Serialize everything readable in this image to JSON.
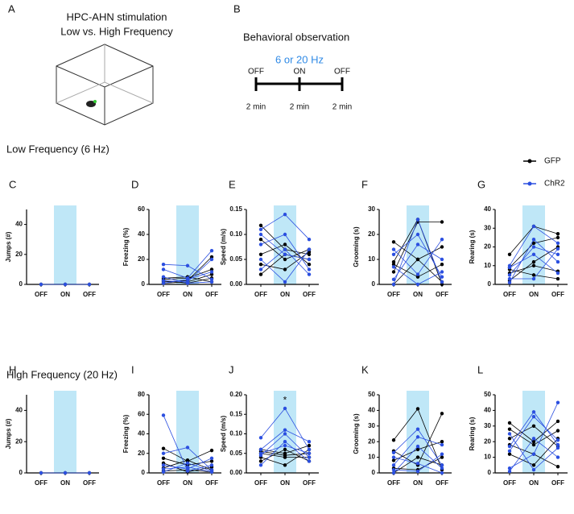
{
  "panel_a": {
    "label": "A",
    "title": [
      "HPC-AHN stimulation",
      "Low vs. High Frequency"
    ]
  },
  "panel_b": {
    "label": "B",
    "title": "Behavioral observation",
    "stim": "6 or 20 Hz",
    "stim_color": "#2f8ae6",
    "states": [
      "OFF",
      "ON",
      "OFF"
    ],
    "durations": [
      "2 min",
      "2 min",
      "2 min"
    ]
  },
  "sections": [
    "Low Frequency (6 Hz)",
    "High Frequency (20 Hz)"
  ],
  "legend": [
    {
      "name": "GFP",
      "color": "#000000"
    },
    {
      "name": "ChR2",
      "color": "#2b4fe0"
    }
  ],
  "shade_color": "#bfe7f7",
  "chart_data": [
    {
      "type": "line",
      "panel": "C",
      "ylabel": "Jumps (#)",
      "categories": [
        "OFF",
        "ON",
        "OFF"
      ],
      "ylim": [
        0,
        50
      ],
      "yticks": [
        0,
        20,
        40
      ],
      "groups": [
        {
          "color": "#000000",
          "subjects": [
            [
              0,
              0,
              0
            ]
          ]
        },
        {
          "color": "#2b4fe0",
          "subjects": [
            [
              0,
              0,
              0
            ]
          ]
        }
      ]
    },
    {
      "type": "line",
      "panel": "D",
      "ylabel": "Freezing (%)",
      "categories": [
        "OFF",
        "ON",
        "OFF"
      ],
      "ylim": [
        0,
        60
      ],
      "yticks": [
        0,
        20,
        40,
        60
      ],
      "groups": [
        {
          "color": "#000000",
          "subjects": [
            [
              4,
              5,
              12
            ],
            [
              2,
              3,
              22
            ],
            [
              5,
              6,
              2
            ],
            [
              1,
              2,
              8
            ],
            [
              3,
              1,
              5
            ]
          ]
        },
        {
          "color": "#2b4fe0",
          "subjects": [
            [
              16,
              15,
              4
            ],
            [
              12,
              5,
              27
            ],
            [
              3,
              2,
              20
            ],
            [
              1,
              4,
              10
            ],
            [
              6,
              1,
              2
            ]
          ]
        }
      ]
    },
    {
      "type": "line",
      "panel": "E",
      "ylabel": "Speed (m/s)",
      "categories": [
        "OFF",
        "ON",
        "OFF"
      ],
      "ylim": [
        0,
        0.15
      ],
      "yticks": [
        {
          "value": 0,
          "label": "0.00"
        },
        {
          "value": 0.05,
          "label": "0.05"
        },
        {
          "value": 0.1,
          "label": "0.10"
        },
        {
          "value": 0.15,
          "label": "0.15"
        }
      ],
      "groups": [
        {
          "color": "#000000",
          "subjects": [
            [
              0.118,
              0.07,
              0.06
            ],
            [
              0.09,
              0.05,
              0.07
            ],
            [
              0.06,
              0.08,
              0.04
            ],
            [
              0.04,
              0.03,
              0.065
            ],
            [
              0.02,
              0.06,
              0.05
            ]
          ]
        },
        {
          "color": "#2b4fe0",
          "subjects": [
            [
              0.11,
              0.14,
              0.09
            ],
            [
              0.08,
              0.1,
              0.03
            ],
            [
              0.05,
              0.005,
              0.07
            ],
            [
              0.03,
              0.07,
              0.02
            ],
            [
              0.1,
              0.06,
              0.05
            ]
          ]
        }
      ]
    },
    {
      "type": "line",
      "panel": "F",
      "ylabel": "Grooming (s)",
      "categories": [
        "OFF",
        "ON",
        "OFF"
      ],
      "ylim": [
        0,
        30
      ],
      "yticks": [
        0,
        10,
        20,
        30
      ],
      "groups": [
        {
          "color": "#000000",
          "subjects": [
            [
              17,
              10,
              1
            ],
            [
              9,
              26,
              0
            ],
            [
              5,
              25,
              25
            ],
            [
              0,
              10,
              15
            ],
            [
              8,
              3,
              8
            ]
          ]
        },
        {
          "color": "#2b4fe0",
          "subjects": [
            [
              12,
              20,
              3
            ],
            [
              2,
              16,
              10
            ],
            [
              7,
              0,
              5
            ],
            [
              0,
              26,
              1
            ],
            [
              14,
              4,
              18
            ]
          ]
        }
      ]
    },
    {
      "type": "line",
      "panel": "G",
      "ylabel": "Rearing (s)",
      "categories": [
        "OFF",
        "ON",
        "OFF"
      ],
      "ylim": [
        0,
        40
      ],
      "yticks": [
        0,
        10,
        20,
        30,
        40
      ],
      "groups": [
        {
          "color": "#000000",
          "subjects": [
            [
              16,
              31,
              27
            ],
            [
              9,
              22,
              25
            ],
            [
              6,
              10,
              7
            ],
            [
              2,
              12,
              20
            ],
            [
              8,
              5,
              3
            ]
          ]
        },
        {
          "color": "#2b4fe0",
          "subjects": [
            [
              10,
              31,
              22
            ],
            [
              5,
              20,
              16
            ],
            [
              3,
              3,
              19
            ],
            [
              1,
              24,
              12
            ],
            [
              9,
              16,
              6
            ]
          ]
        }
      ]
    },
    {
      "type": "line",
      "panel": "H",
      "ylabel": "Jumps (#)",
      "categories": [
        "OFF",
        "ON",
        "OFF"
      ],
      "ylim": [
        0,
        50
      ],
      "yticks": [
        0,
        20,
        40
      ],
      "groups": [
        {
          "color": "#000000",
          "subjects": [
            [
              0,
              0,
              0
            ]
          ]
        },
        {
          "color": "#2b4fe0",
          "subjects": [
            [
              0,
              0,
              0
            ]
          ]
        }
      ]
    },
    {
      "type": "line",
      "panel": "I",
      "ylabel": "Freezing (%)",
      "categories": [
        "OFF",
        "ON",
        "OFF"
      ],
      "ylim": [
        0,
        80
      ],
      "yticks": [
        0,
        20,
        40,
        60,
        80
      ],
      "groups": [
        {
          "color": "#000000",
          "subjects": [
            [
              25,
              12,
              23
            ],
            [
              15,
              8,
              12
            ],
            [
              5,
              13,
              3
            ],
            [
              2,
              3,
              1
            ],
            [
              10,
              1,
              6
            ]
          ]
        },
        {
          "color": "#2b4fe0",
          "subjects": [
            [
              59,
              2,
              8
            ],
            [
              20,
              26,
              3
            ],
            [
              8,
              4,
              15
            ],
            [
              1,
              10,
              2
            ],
            [
              4,
              6,
              1
            ]
          ]
        }
      ]
    },
    {
      "type": "line",
      "panel": "J",
      "ylabel": "Speed (m/s)",
      "categories": [
        "OFF",
        "ON",
        "OFF"
      ],
      "ylim": [
        0,
        0.2
      ],
      "yticks": [
        {
          "value": 0,
          "label": "0.00"
        },
        {
          "value": 0.05,
          "label": "0.05"
        },
        {
          "value": 0.1,
          "label": "0.10"
        },
        {
          "value": 0.15,
          "label": "0.15"
        },
        {
          "value": 0.2,
          "label": "0.20"
        }
      ],
      "annotation": {
        "text": "*",
        "value": 0.185
      },
      "groups": [
        {
          "color": "#000000",
          "subjects": [
            [
              0.06,
              0.05,
              0.07
            ],
            [
              0.05,
              0.04,
              0.04
            ],
            [
              0.04,
              0.02,
              0.06
            ],
            [
              0.03,
              0.06,
              0.03
            ],
            [
              0.055,
              0.045,
              0.05
            ]
          ]
        },
        {
          "color": "#2b4fe0",
          "subjects": [
            [
              0.09,
              0.165,
              0.06
            ],
            [
              0.06,
              0.11,
              0.08
            ],
            [
              0.045,
              0.1,
              0.04
            ],
            [
              0.02,
              0.08,
              0.03
            ],
            [
              0.05,
              0.07,
              0.05
            ]
          ]
        }
      ]
    },
    {
      "type": "line",
      "panel": "K",
      "ylabel": "Grooming (s)",
      "categories": [
        "OFF",
        "ON",
        "OFF"
      ],
      "ylim": [
        0,
        50
      ],
      "yticks": [
        0,
        10,
        20,
        30,
        40,
        50
      ],
      "groups": [
        {
          "color": "#000000",
          "subjects": [
            [
              21,
              41,
              2
            ],
            [
              14,
              5,
              38
            ],
            [
              8,
              15,
              20
            ],
            [
              3,
              2,
              10
            ],
            [
              0,
              10,
              5
            ]
          ]
        },
        {
          "color": "#2b4fe0",
          "subjects": [
            [
              13,
              28,
              5
            ],
            [
              5,
              23,
              18
            ],
            [
              2,
              1,
              12
            ],
            [
              10,
              6,
              0
            ],
            [
              0,
              17,
              3
            ]
          ]
        }
      ]
    },
    {
      "type": "line",
      "panel": "L",
      "ylabel": "Rearing (s)",
      "categories": [
        "OFF",
        "ON",
        "OFF"
      ],
      "ylim": [
        0,
        50
      ],
      "yticks": [
        0,
        10,
        20,
        30,
        40,
        50
      ],
      "groups": [
        {
          "color": "#000000",
          "subjects": [
            [
              32,
              20,
              33
            ],
            [
              22,
              30,
              17
            ],
            [
              18,
              12,
              4
            ],
            [
              12,
              5,
              22
            ],
            [
              28,
              18,
              27
            ]
          ]
        },
        {
          "color": "#2b4fe0",
          "subjects": [
            [
              17,
              39,
              18
            ],
            [
              14,
              36,
              21
            ],
            [
              3,
              12,
              45
            ],
            [
              1,
              22,
              10
            ],
            [
              25,
              2,
              16
            ]
          ]
        }
      ]
    }
  ]
}
